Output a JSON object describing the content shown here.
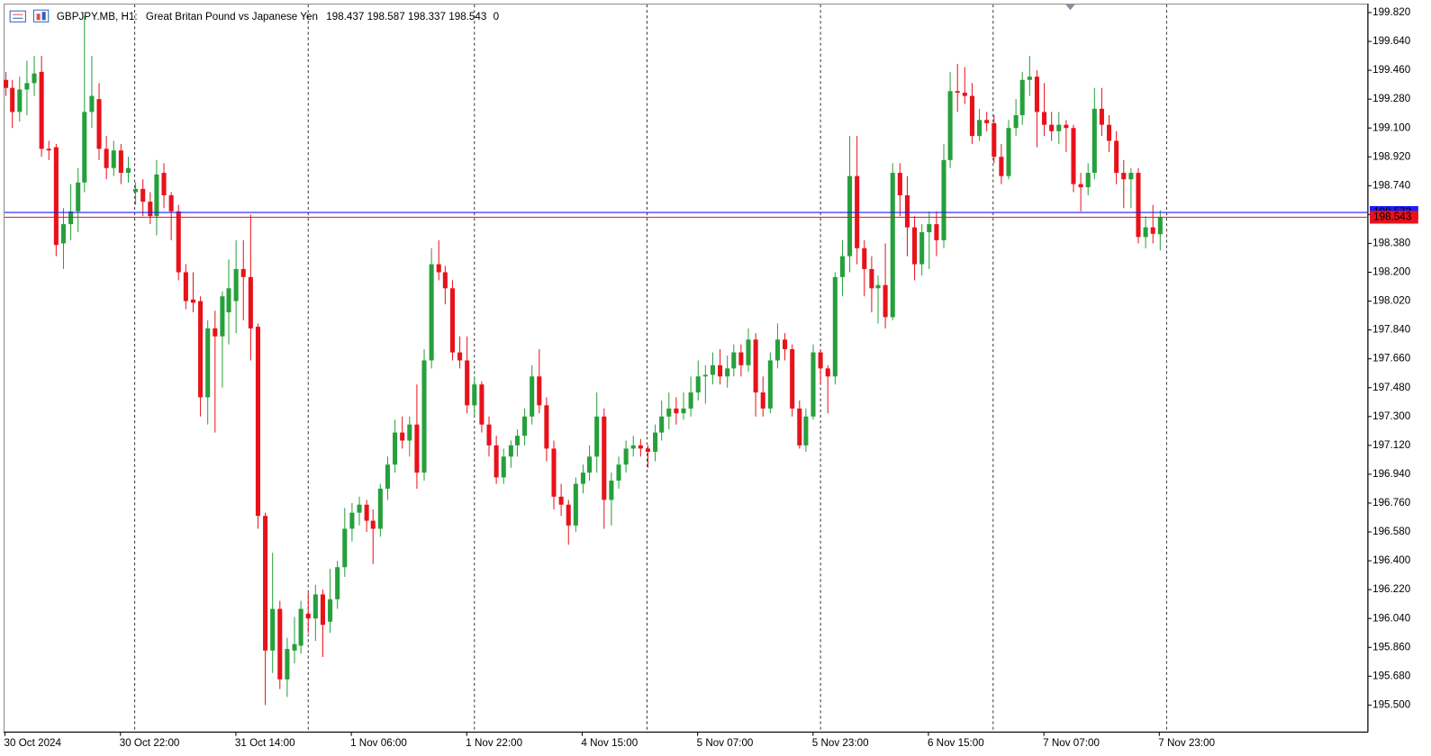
{
  "chart_data": {
    "type": "candlestick",
    "title": "GBPJPY.MB, H1:",
    "subtitle": "Great Britan Pound vs Japanese Yen",
    "spread": 0,
    "ask": 198.573,
    "up_color": "#26a03c",
    "down_color": "#e8121b",
    "bid_color": "#e8121b",
    "ask_color": "#1c1cff",
    "grid": false,
    "categories": [
      "30 Oct 2024",
      null,
      null,
      null,
      null,
      null,
      null,
      null,
      null,
      null,
      null,
      null,
      null,
      null,
      null,
      null,
      "30 Oct 22:00",
      null,
      null,
      null,
      null,
      null,
      null,
      null,
      null,
      null,
      null,
      null,
      null,
      null,
      null,
      null,
      "31 Oct 14:00",
      null,
      null,
      null,
      null,
      null,
      null,
      null,
      null,
      null,
      null,
      null,
      null,
      null,
      null,
      null,
      "1 Nov 06:00",
      null,
      null,
      null,
      null,
      null,
      null,
      null,
      null,
      null,
      null,
      null,
      null,
      null,
      null,
      null,
      "1 Nov 22:00",
      null,
      null,
      null,
      null,
      null,
      null,
      null,
      null,
      null,
      null,
      null,
      null,
      null,
      null,
      null,
      "4 Nov 15:00",
      null,
      null,
      null,
      null,
      null,
      null,
      null,
      null,
      null,
      null,
      null,
      null,
      null,
      null,
      null,
      "5 Nov 07:00",
      null,
      null,
      null,
      null,
      null,
      null,
      null,
      null,
      null,
      null,
      null,
      null,
      null,
      null,
      null,
      "5 Nov 23:00",
      null,
      null,
      null,
      null,
      null,
      null,
      null,
      null,
      null,
      null,
      null,
      null,
      null,
      null,
      null,
      "6 Nov 15:00",
      null,
      null,
      null,
      null,
      null,
      null,
      null,
      null,
      null,
      null,
      null,
      null,
      null,
      null,
      null,
      "7 Nov 07:00",
      null,
      null,
      null,
      null,
      null,
      null,
      null,
      null,
      null,
      null,
      null,
      null,
      null,
      null,
      null,
      "7 Nov 23:00"
    ],
    "open": [
      199.4,
      199.35,
      199.2,
      199.34,
      199.38,
      199.45,
      198.97,
      198.98,
      198.38,
      198.5,
      198.58,
      198.76,
      199.2,
      199.28,
      198.97,
      198.85,
      198.96,
      198.82,
      198.7,
      198.72,
      198.64,
      198.55,
      198.82,
      198.68,
      198.58,
      198.2,
      198.03,
      198.02,
      197.42,
      197.85,
      197.8,
      197.95,
      198.02,
      198.22,
      198.17,
      197.86,
      196.68,
      195.84,
      196.1,
      195.66,
      195.84,
      195.87,
      196.07,
      196.04,
      196.19,
      196.02,
      196.16,
      196.36,
      196.6,
      196.7,
      196.75,
      196.65,
      196.6,
      196.85,
      197.0,
      197.2,
      197.15,
      197.25,
      196.95,
      197.65,
      198.25,
      198.2,
      198.1,
      197.7,
      197.65,
      197.37,
      197.5,
      197.25,
      197.12,
      196.92,
      197.05,
      197.12,
      197.18,
      197.3,
      197.55,
      197.37,
      197.1,
      196.8,
      196.75,
      196.62,
      196.88,
      196.95,
      197.05,
      197.3,
      196.78,
      196.9,
      197.0,
      197.1,
      197.12,
      197.1,
      197.08,
      197.2,
      197.3,
      197.35,
      197.32,
      197.35,
      197.45,
      197.55,
      197.56,
      197.62,
      197.55,
      197.6,
      197.7,
      197.62,
      197.78,
      197.45,
      197.35,
      197.65,
      197.78,
      197.72,
      197.35,
      197.12,
      197.3,
      197.7,
      197.6,
      197.55,
      198.17,
      198.3,
      198.8,
      198.35,
      198.22,
      198.1,
      198.12,
      197.92,
      198.82,
      198.68,
      198.48,
      198.25,
      198.45,
      198.5,
      198.4,
      198.9,
      199.33,
      199.32,
      199.3,
      199.05,
      199.15,
      199.13,
      198.92,
      198.8,
      199.1,
      199.18,
      199.4,
      199.42,
      199.2,
      199.12,
      199.08,
      199.12,
      199.1,
      198.75,
      198.73,
      198.82,
      199.22,
      199.12,
      199.02,
      198.82,
      198.78,
      198.82,
      198.42,
      198.48,
      198.437
    ],
    "high": [
      199.45,
      199.4,
      199.42,
      199.52,
      199.55,
      199.55,
      199.02,
      199.0,
      198.6,
      198.75,
      198.85,
      199.8,
      199.55,
      199.38,
      199.05,
      199.02,
      199.0,
      198.92,
      198.76,
      198.78,
      198.7,
      198.9,
      198.88,
      198.7,
      198.62,
      198.25,
      198.2,
      198.05,
      197.9,
      197.96,
      198.08,
      198.28,
      198.4,
      198.4,
      198.56,
      197.88,
      196.7,
      196.45,
      196.15,
      195.92,
      196.05,
      196.15,
      196.2,
      196.25,
      196.22,
      196.35,
      196.4,
      196.73,
      196.76,
      196.8,
      196.78,
      196.72,
      196.88,
      197.05,
      197.28,
      197.3,
      197.3,
      197.5,
      197.72,
      198.35,
      198.4,
      198.24,
      198.15,
      197.8,
      197.8,
      197.55,
      197.52,
      197.3,
      197.18,
      197.1,
      197.15,
      197.22,
      197.35,
      197.62,
      197.72,
      197.42,
      197.15,
      196.88,
      196.78,
      196.92,
      197.0,
      197.12,
      197.45,
      197.35,
      196.95,
      197.05,
      197.15,
      197.18,
      197.16,
      197.12,
      197.25,
      197.4,
      197.45,
      197.42,
      197.45,
      197.55,
      197.65,
      197.62,
      197.7,
      197.72,
      197.68,
      197.75,
      197.75,
      197.85,
      197.82,
      197.55,
      197.7,
      197.88,
      197.82,
      197.75,
      197.4,
      197.35,
      197.75,
      197.72,
      197.62,
      198.2,
      198.4,
      199.05,
      199.05,
      198.4,
      198.3,
      198.18,
      198.38,
      198.88,
      198.88,
      198.8,
      198.55,
      198.5,
      198.58,
      198.58,
      199.0,
      199.45,
      199.5,
      199.48,
      199.38,
      199.22,
      199.2,
      199.18,
      199.0,
      199.15,
      199.28,
      199.45,
      199.55,
      199.46,
      199.38,
      199.2,
      199.2,
      199.15,
      199.12,
      198.82,
      198.88,
      199.35,
      199.35,
      199.18,
      199.08,
      198.9,
      198.85,
      198.85,
      198.55,
      198.62,
      198.587
    ],
    "low": [
      199.3,
      199.1,
      199.14,
      199.18,
      199.3,
      198.92,
      198.9,
      198.3,
      198.22,
      198.4,
      198.45,
      198.7,
      199.1,
      198.9,
      198.78,
      198.8,
      198.75,
      198.76,
      198.62,
      198.55,
      198.5,
      198.43,
      198.6,
      198.4,
      198.15,
      197.97,
      197.95,
      197.3,
      197.25,
      197.2,
      197.48,
      197.75,
      197.82,
      197.9,
      197.65,
      196.6,
      195.5,
      195.7,
      195.6,
      195.55,
      195.76,
      195.82,
      195.95,
      195.9,
      195.8,
      195.95,
      196.1,
      196.3,
      196.52,
      196.62,
      196.58,
      196.38,
      196.55,
      196.78,
      196.95,
      197.1,
      197.05,
      196.85,
      196.9,
      197.6,
      198.15,
      198.0,
      197.65,
      197.6,
      197.32,
      197.3,
      197.2,
      197.05,
      196.88,
      196.88,
      196.98,
      197.05,
      197.12,
      197.25,
      197.32,
      197.02,
      196.72,
      196.68,
      196.5,
      196.58,
      196.82,
      196.9,
      196.95,
      196.6,
      196.62,
      196.85,
      196.95,
      197.05,
      197.05,
      196.98,
      197.02,
      197.15,
      197.22,
      197.25,
      197.28,
      197.3,
      197.4,
      197.38,
      197.5,
      197.5,
      197.48,
      197.55,
      197.55,
      197.58,
      197.3,
      197.3,
      197.32,
      197.6,
      197.65,
      197.3,
      197.1,
      197.08,
      197.28,
      197.5,
      197.32,
      197.5,
      198.05,
      198.2,
      198.25,
      198.05,
      197.95,
      197.88,
      197.85,
      197.9,
      198.55,
      198.3,
      198.15,
      198.18,
      198.22,
      198.3,
      198.35,
      198.85,
      199.2,
      199.25,
      199.0,
      199.02,
      199.08,
      198.88,
      198.75,
      198.78,
      199.05,
      199.12,
      199.3,
      198.98,
      199.05,
      199.02,
      199.0,
      198.95,
      198.7,
      198.58,
      198.68,
      198.78,
      199.05,
      198.95,
      198.75,
      198.6,
      198.6,
      198.38,
      198.35,
      198.38,
      198.337
    ],
    "close": [
      199.35,
      199.2,
      199.34,
      199.38,
      199.44,
      198.97,
      198.96,
      198.37,
      198.5,
      198.58,
      198.76,
      199.2,
      199.3,
      198.97,
      198.85,
      198.96,
      198.82,
      198.85,
      198.72,
      198.64,
      198.55,
      198.81,
      198.68,
      198.58,
      198.2,
      198.02,
      198.01,
      197.42,
      197.85,
      197.8,
      198.05,
      198.1,
      198.22,
      198.17,
      197.85,
      196.68,
      195.84,
      196.1,
      195.66,
      195.85,
      195.88,
      196.1,
      196.04,
      196.19,
      196.0,
      196.16,
      196.36,
      196.6,
      196.7,
      196.75,
      196.65,
      196.6,
      196.85,
      197.0,
      197.2,
      197.15,
      197.25,
      196.95,
      197.65,
      198.25,
      198.2,
      198.1,
      197.7,
      197.65,
      197.37,
      197.5,
      197.25,
      197.12,
      196.92,
      197.05,
      197.12,
      197.18,
      197.3,
      197.55,
      197.37,
      197.1,
      196.8,
      196.75,
      196.62,
      196.88,
      196.95,
      197.05,
      197.3,
      196.78,
      196.9,
      197.0,
      197.1,
      197.12,
      197.1,
      197.08,
      197.2,
      197.3,
      197.35,
      197.32,
      197.35,
      197.45,
      197.55,
      197.56,
      197.62,
      197.55,
      197.6,
      197.7,
      197.62,
      197.78,
      197.45,
      197.35,
      197.65,
      197.78,
      197.72,
      197.35,
      197.12,
      197.3,
      197.7,
      197.6,
      197.55,
      198.17,
      198.3,
      198.8,
      198.35,
      198.22,
      198.1,
      198.12,
      197.92,
      198.82,
      198.68,
      198.48,
      198.25,
      198.45,
      198.5,
      198.4,
      198.9,
      199.33,
      199.32,
      199.3,
      199.05,
      199.15,
      199.13,
      198.92,
      198.8,
      199.1,
      199.18,
      199.4,
      199.42,
      199.2,
      199.12,
      199.08,
      199.12,
      199.1,
      198.75,
      198.73,
      198.82,
      199.22,
      199.12,
      199.02,
      198.82,
      198.78,
      198.82,
      198.42,
      198.48,
      198.44,
      198.543
    ],
    "ylim": [
      195.33,
      199.87
    ],
    "yticks": [
      {
        "value": 199.82,
        "label": "199.820"
      },
      {
        "value": 199.64,
        "label": "199.640"
      },
      {
        "value": 199.46,
        "label": "199.460"
      },
      {
        "value": 199.28,
        "label": "199.280"
      },
      {
        "value": 199.1,
        "label": "199.100"
      },
      {
        "value": 198.92,
        "label": "198.920"
      },
      {
        "value": 198.74,
        "label": "198.740"
      },
      {
        "value": 198.56,
        "label": "198.560"
      },
      {
        "value": 198.38,
        "label": "198.380"
      },
      {
        "value": 198.2,
        "label": "198.200"
      },
      {
        "value": 198.02,
        "label": "198.020"
      },
      {
        "value": 197.84,
        "label": "197.840"
      },
      {
        "value": 197.66,
        "label": "197.660"
      },
      {
        "value": 197.48,
        "label": "197.480"
      },
      {
        "value": 197.3,
        "label": "197.300"
      },
      {
        "value": 197.12,
        "label": "197.120"
      },
      {
        "value": 196.94,
        "label": "196.940"
      },
      {
        "value": 196.76,
        "label": "196.760"
      },
      {
        "value": 196.58,
        "label": "196.580"
      },
      {
        "value": 196.4,
        "label": "196.400"
      },
      {
        "value": 196.22,
        "label": "196.220"
      },
      {
        "value": 196.04,
        "label": "196.040"
      },
      {
        "value": 195.86,
        "label": "195.860"
      },
      {
        "value": 195.68,
        "label": "195.680"
      },
      {
        "value": 195.5,
        "label": "195.500"
      }
    ]
  }
}
